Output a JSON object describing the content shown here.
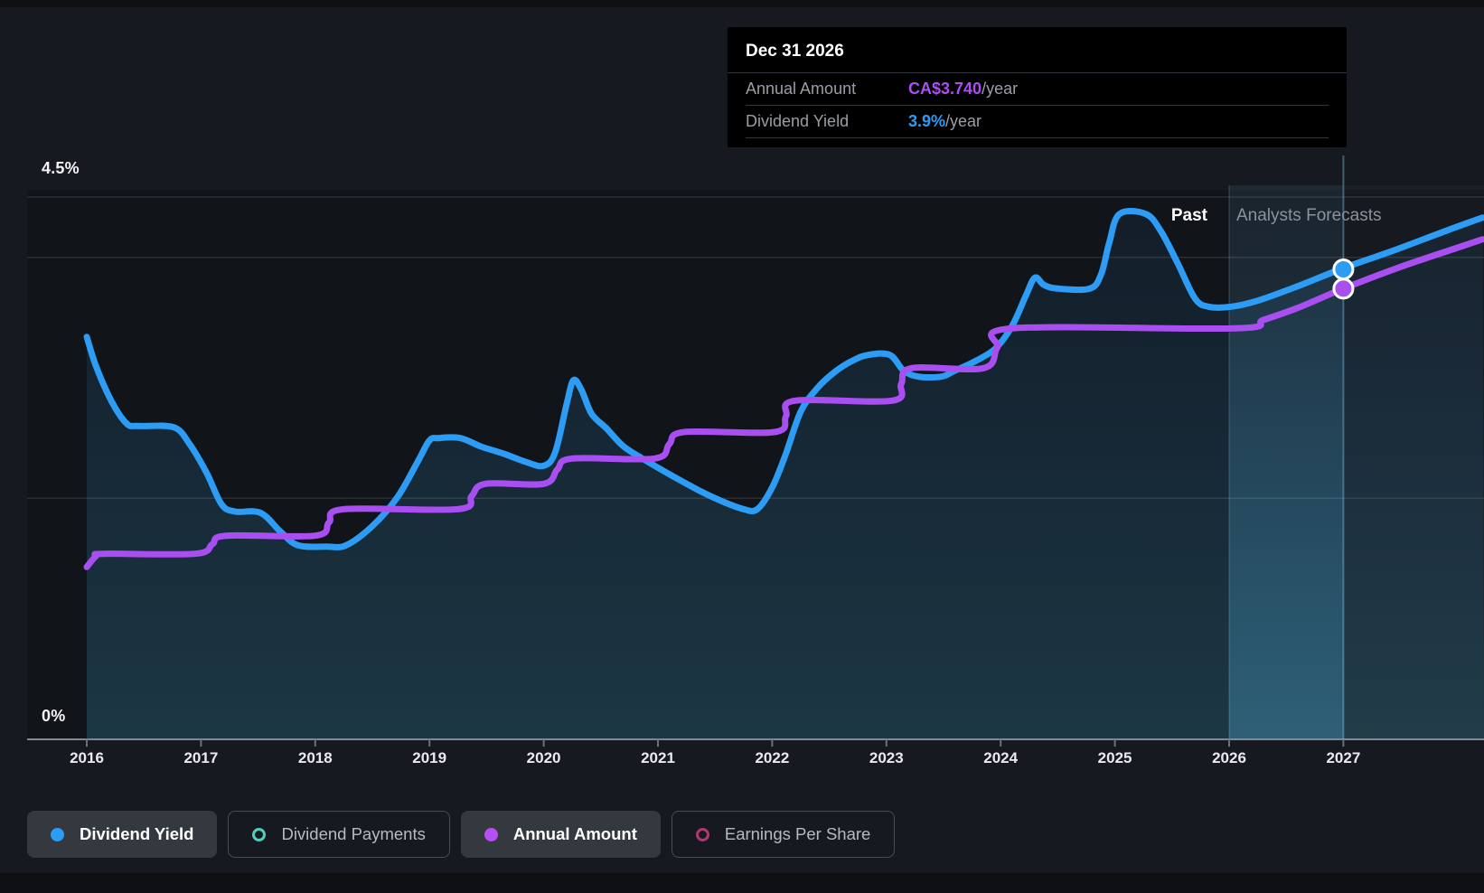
{
  "page": {
    "background": "#161a20"
  },
  "colors": {
    "dividend_yield_blue": "#2d9cf4",
    "annual_amount_purple": "#a94ff2",
    "dividend_payments_teal": "#4fd0bd",
    "earnings_per_share_pink": "#ab3a72",
    "tooltip_background": "#000000",
    "axis_grey": "#85898e"
  },
  "tooltip": {
    "date": "Dec 31 2026",
    "rows": [
      {
        "label": "Annual Amount",
        "value": "CA$3.740",
        "suffix": "/year"
      },
      {
        "label": "Dividend Yield",
        "value": "3.9%",
        "suffix": "/year"
      }
    ]
  },
  "labels": {
    "past": "Past",
    "forecast": "Analysts Forecasts"
  },
  "y_axis": {
    "max_label": "4.5%",
    "min_label": "0%"
  },
  "legend": {
    "items": [
      {
        "label": "Dividend Yield",
        "marker": "dot",
        "color": "#2d9cf4",
        "active": true
      },
      {
        "label": "Dividend Payments",
        "marker": "ring",
        "color": "#4fd0bd",
        "active": false
      },
      {
        "label": "Annual Amount",
        "marker": "dot",
        "color": "#b44ff2",
        "active": true
      },
      {
        "label": "Earnings Per Share",
        "marker": "ring",
        "color": "#ab3a72",
        "active": false
      }
    ]
  },
  "chart_data": {
    "type": "line",
    "title": "Dividend history and forecast",
    "x": {
      "start": 2016,
      "end": 2028.25,
      "tick_labels": [
        "2016",
        "2017",
        "2018",
        "2019",
        "2020",
        "2021",
        "2022",
        "2023",
        "2024",
        "2025",
        "2026",
        "2027"
      ]
    },
    "y": {
      "unit": "%",
      "min": 0,
      "max": 4.5,
      "gridlines": [
        4.5,
        4.0,
        2.0,
        0
      ],
      "grid_on": true
    },
    "regions": {
      "forecast_start": 2026,
      "past_label": "Past",
      "forecast_label": "Analysts Forecasts"
    },
    "cursor": {
      "date": "Dec 31 2026",
      "x": 2027,
      "dividend_yield_pct": 3.9,
      "annual_amount_ca": 3.74
    },
    "series": [
      {
        "name": "Dividend Yield",
        "units": "%",
        "color": "#2d9cf4",
        "style": "area",
        "points": [
          [
            2016.0,
            3.34
          ],
          [
            2016.08,
            3.1
          ],
          [
            2016.22,
            2.8
          ],
          [
            2016.35,
            2.62
          ],
          [
            2016.45,
            2.6
          ],
          [
            2016.76,
            2.59
          ],
          [
            2016.9,
            2.45
          ],
          [
            2017.05,
            2.21
          ],
          [
            2017.18,
            1.95
          ],
          [
            2017.3,
            1.89
          ],
          [
            2017.52,
            1.88
          ],
          [
            2017.7,
            1.72
          ],
          [
            2017.85,
            1.61
          ],
          [
            2018.1,
            1.6
          ],
          [
            2018.27,
            1.61
          ],
          [
            2018.5,
            1.77
          ],
          [
            2018.72,
            2.01
          ],
          [
            2018.9,
            2.31
          ],
          [
            2019.0,
            2.48
          ],
          [
            2019.08,
            2.5
          ],
          [
            2019.27,
            2.5
          ],
          [
            2019.45,
            2.43
          ],
          [
            2019.65,
            2.37
          ],
          [
            2019.85,
            2.3
          ],
          [
            2020.0,
            2.27
          ],
          [
            2020.1,
            2.38
          ],
          [
            2020.2,
            2.78
          ],
          [
            2020.26,
            2.98
          ],
          [
            2020.33,
            2.9
          ],
          [
            2020.42,
            2.7
          ],
          [
            2020.55,
            2.58
          ],
          [
            2020.7,
            2.43
          ],
          [
            2020.9,
            2.31
          ],
          [
            2021.1,
            2.2
          ],
          [
            2021.35,
            2.07
          ],
          [
            2021.55,
            1.98
          ],
          [
            2021.75,
            1.91
          ],
          [
            2021.87,
            1.91
          ],
          [
            2022.0,
            2.09
          ],
          [
            2022.12,
            2.37
          ],
          [
            2022.25,
            2.72
          ],
          [
            2022.4,
            2.92
          ],
          [
            2022.55,
            3.05
          ],
          [
            2022.7,
            3.14
          ],
          [
            2022.84,
            3.19
          ],
          [
            2023.03,
            3.19
          ],
          [
            2023.15,
            3.06
          ],
          [
            2023.28,
            3.01
          ],
          [
            2023.48,
            3.01
          ],
          [
            2023.6,
            3.06
          ],
          [
            2023.76,
            3.13
          ],
          [
            2023.95,
            3.24
          ],
          [
            2024.1,
            3.43
          ],
          [
            2024.22,
            3.68
          ],
          [
            2024.3,
            3.83
          ],
          [
            2024.38,
            3.77
          ],
          [
            2024.5,
            3.74
          ],
          [
            2024.78,
            3.74
          ],
          [
            2024.88,
            3.86
          ],
          [
            2024.95,
            4.12
          ],
          [
            2025.04,
            4.36
          ],
          [
            2025.27,
            4.36
          ],
          [
            2025.4,
            4.22
          ],
          [
            2025.55,
            3.95
          ],
          [
            2025.7,
            3.66
          ],
          [
            2025.82,
            3.59
          ],
          [
            2026.02,
            3.59
          ],
          [
            2026.25,
            3.64
          ],
          [
            2026.6,
            3.76
          ],
          [
            2027.0,
            3.91
          ],
          [
            2027.45,
            4.06
          ],
          [
            2027.9,
            4.22
          ],
          [
            2028.22,
            4.33
          ]
        ]
      },
      {
        "name": "Annual Amount",
        "units": "CA$/year",
        "color": "#a94ff2",
        "style": "line",
        "points": [
          [
            2016.0,
            1.43
          ],
          [
            2016.08,
            1.52
          ],
          [
            2016.15,
            1.54
          ],
          [
            2016.95,
            1.54
          ],
          [
            2017.1,
            1.62
          ],
          [
            2017.22,
            1.69
          ],
          [
            2018.0,
            1.69
          ],
          [
            2018.12,
            1.8
          ],
          [
            2018.25,
            1.91
          ],
          [
            2019.25,
            1.91
          ],
          [
            2019.37,
            2.02
          ],
          [
            2019.49,
            2.12
          ],
          [
            2020.0,
            2.12
          ],
          [
            2020.12,
            2.24
          ],
          [
            2020.25,
            2.33
          ],
          [
            2020.97,
            2.33
          ],
          [
            2021.1,
            2.45
          ],
          [
            2021.23,
            2.55
          ],
          [
            2022.02,
            2.55
          ],
          [
            2022.12,
            2.68
          ],
          [
            2022.2,
            2.81
          ],
          [
            2023.05,
            2.81
          ],
          [
            2023.13,
            2.95
          ],
          [
            2023.22,
            3.08
          ],
          [
            2023.85,
            3.08
          ],
          [
            2023.97,
            3.25
          ],
          [
            2024.1,
            3.41
          ],
          [
            2026.05,
            3.41
          ],
          [
            2026.3,
            3.48
          ],
          [
            2026.6,
            3.58
          ],
          [
            2027.0,
            3.74
          ],
          [
            2027.5,
            3.92
          ],
          [
            2028.0,
            4.08
          ],
          [
            2028.22,
            4.15
          ]
        ]
      }
    ],
    "legend_only_series": [
      "Dividend Payments",
      "Earnings Per Share"
    ]
  }
}
